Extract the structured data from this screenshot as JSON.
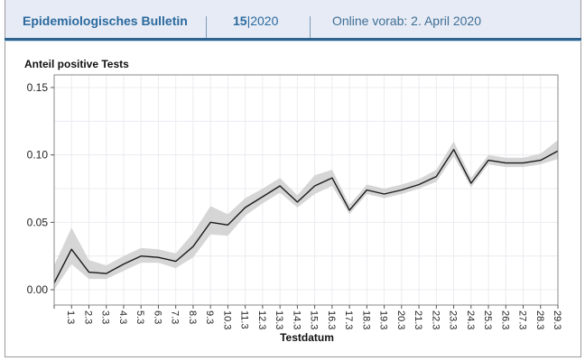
{
  "header": {
    "title": "Epidemiologisches Bulletin",
    "issue_number": "15",
    "issue_separator": "|",
    "issue_year": "2020",
    "online_note": "Online vorab: 2. April 2020"
  },
  "colors": {
    "brand_blue": "#2a6a9e",
    "header_bg": "#e7ebf5",
    "header_rule": "#2e6390",
    "line": "#1a1a1a",
    "band": "#cfcfcf",
    "grid": "#ececf1"
  },
  "chart_data": {
    "type": "line",
    "title": "",
    "ylabel": "Anteil positive Tests",
    "xlabel": "Testdatum",
    "ylim": [
      -0.011,
      0.16
    ],
    "yticks": [
      0.0,
      0.05,
      0.1,
      0.15
    ],
    "ytick_labels": [
      "0.00",
      "0.05",
      "0.10",
      "0.15"
    ],
    "grid": true,
    "legend": null,
    "x": [
      "",
      "1.3",
      "2.3",
      "3.3",
      "4.3",
      "5.3",
      "6.3",
      "7.3",
      "8.3",
      "9.3",
      "10.3",
      "11.3",
      "12.3",
      "13.3",
      "14.3",
      "15.3",
      "16.3",
      "17.3",
      "18.3",
      "19.3",
      "20.3",
      "21.3",
      "22.3",
      "23.3",
      "24.3",
      "25.3",
      "26.3",
      "27.3",
      "28.3",
      "29.3"
    ],
    "series": [
      {
        "name": "Anteil positive Tests",
        "values": [
          0.005,
          0.03,
          0.013,
          0.012,
          0.019,
          0.025,
          0.024,
          0.021,
          0.032,
          0.05,
          0.048,
          0.061,
          0.069,
          0.077,
          0.065,
          0.077,
          0.083,
          0.059,
          0.074,
          0.071,
          0.074,
          0.078,
          0.084,
          0.104,
          0.079,
          0.096,
          0.094,
          0.094,
          0.096,
          0.103
        ],
        "ci_lower": [
          0.0,
          0.019,
          0.008,
          0.008,
          0.014,
          0.02,
          0.02,
          0.016,
          0.024,
          0.041,
          0.04,
          0.055,
          0.064,
          0.072,
          0.061,
          0.071,
          0.077,
          0.056,
          0.071,
          0.068,
          0.071,
          0.075,
          0.08,
          0.099,
          0.076,
          0.093,
          0.091,
          0.091,
          0.093,
          0.097
        ],
        "ci_upper": [
          0.018,
          0.046,
          0.022,
          0.018,
          0.025,
          0.031,
          0.03,
          0.027,
          0.042,
          0.062,
          0.056,
          0.068,
          0.075,
          0.083,
          0.07,
          0.085,
          0.089,
          0.063,
          0.078,
          0.075,
          0.078,
          0.082,
          0.089,
          0.11,
          0.083,
          0.1,
          0.098,
          0.098,
          0.101,
          0.111
        ]
      }
    ]
  }
}
